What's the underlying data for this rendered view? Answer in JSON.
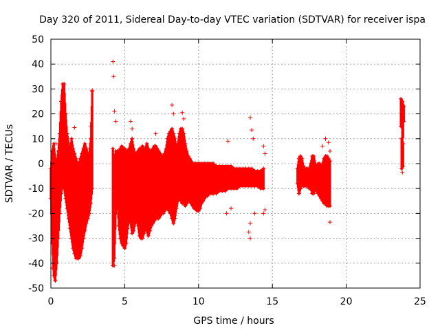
{
  "chart_data": {
    "type": "scatter",
    "title": "Day 320 of 2011, Sidereal Day-to-day VTEC variation (SDTVAR) for receiver ispa",
    "xlabel": "GPS time / hours",
    "ylabel": "SDTVAR / TECUs",
    "xlim": [
      0,
      25
    ],
    "ylim": [
      -50,
      50
    ],
    "x_ticks": [
      0,
      5,
      10,
      15,
      20,
      25
    ],
    "y_ticks": [
      -50,
      -40,
      -30,
      -20,
      -10,
      0,
      10,
      20,
      30,
      40,
      50
    ],
    "grid": true,
    "marker": "+",
    "color": "#ff0000",
    "series": [
      {
        "name": "SDTVAR",
        "bands": [
          {
            "x": 0.0,
            "lo": -14,
            "hi": -2
          },
          {
            "x": 0.1,
            "lo": -32,
            "hi": 5
          },
          {
            "x": 0.2,
            "lo": -45,
            "hi": 8
          },
          {
            "x": 0.3,
            "lo": -47,
            "hi": 2
          },
          {
            "x": 0.4,
            "lo": -40,
            "hi": 0
          },
          {
            "x": 0.5,
            "lo": -30,
            "hi": 5
          },
          {
            "x": 0.6,
            "lo": -20,
            "hi": 12
          },
          {
            "x": 0.7,
            "lo": -12,
            "hi": 25
          },
          {
            "x": 0.8,
            "lo": -8,
            "hi": 32
          },
          {
            "x": 0.9,
            "lo": -10,
            "hi": 32
          },
          {
            "x": 1.0,
            "lo": -14,
            "hi": 20
          },
          {
            "x": 1.1,
            "lo": -18,
            "hi": 12
          },
          {
            "x": 1.2,
            "lo": -22,
            "hi": 8
          },
          {
            "x": 1.3,
            "lo": -26,
            "hi": 5
          },
          {
            "x": 1.4,
            "lo": -30,
            "hi": 10
          },
          {
            "x": 1.5,
            "lo": -34,
            "hi": 6
          },
          {
            "x": 1.6,
            "lo": -36,
            "hi": 4
          },
          {
            "x": 1.7,
            "lo": -38,
            "hi": 2
          },
          {
            "x": 1.8,
            "lo": -38,
            "hi": 0
          },
          {
            "x": 1.9,
            "lo": -38,
            "hi": 0
          },
          {
            "x": 2.0,
            "lo": -37,
            "hi": 2
          },
          {
            "x": 2.1,
            "lo": -34,
            "hi": 4
          },
          {
            "x": 2.2,
            "lo": -30,
            "hi": 6
          },
          {
            "x": 2.3,
            "lo": -27,
            "hi": 8
          },
          {
            "x": 2.4,
            "lo": -24,
            "hi": 6
          },
          {
            "x": 2.5,
            "lo": -22,
            "hi": 4
          },
          {
            "x": 2.6,
            "lo": -20,
            "hi": 4
          },
          {
            "x": 2.7,
            "lo": -16,
            "hi": 10
          },
          {
            "x": 2.8,
            "lo": -10,
            "hi": 29
          },
          {
            "x": 4.2,
            "lo": -41,
            "hi": 6
          },
          {
            "x": 4.3,
            "lo": -38,
            "hi": 0
          },
          {
            "x": 4.4,
            "lo": -20,
            "hi": 5
          },
          {
            "x": 4.5,
            "lo": -15,
            "hi": 5
          },
          {
            "x": 4.6,
            "lo": -25,
            "hi": 5
          },
          {
            "x": 4.7,
            "lo": -30,
            "hi": 6
          },
          {
            "x": 4.8,
            "lo": -32,
            "hi": 7
          },
          {
            "x": 4.9,
            "lo": -33,
            "hi": 6
          },
          {
            "x": 5.0,
            "lo": -34,
            "hi": 6
          },
          {
            "x": 5.1,
            "lo": -32,
            "hi": 5
          },
          {
            "x": 5.2,
            "lo": -26,
            "hi": 5
          },
          {
            "x": 5.3,
            "lo": -22,
            "hi": 6
          },
          {
            "x": 5.4,
            "lo": -24,
            "hi": 8
          },
          {
            "x": 5.5,
            "lo": -28,
            "hi": 10
          },
          {
            "x": 5.6,
            "lo": -27,
            "hi": 6
          },
          {
            "x": 5.7,
            "lo": -24,
            "hi": 4
          },
          {
            "x": 5.8,
            "lo": -22,
            "hi": 4
          },
          {
            "x": 5.9,
            "lo": -25,
            "hi": 5
          },
          {
            "x": 6.0,
            "lo": -29,
            "hi": 6
          },
          {
            "x": 6.1,
            "lo": -30,
            "hi": 6
          },
          {
            "x": 6.2,
            "lo": -30,
            "hi": 7
          },
          {
            "x": 6.3,
            "lo": -28,
            "hi": 6
          },
          {
            "x": 6.4,
            "lo": -26,
            "hi": 6
          },
          {
            "x": 6.5,
            "lo": -27,
            "hi": 8
          },
          {
            "x": 6.6,
            "lo": -29,
            "hi": 6
          },
          {
            "x": 6.7,
            "lo": -27,
            "hi": 5
          },
          {
            "x": 6.8,
            "lo": -25,
            "hi": 5
          },
          {
            "x": 6.9,
            "lo": -24,
            "hi": 6
          },
          {
            "x": 7.0,
            "lo": -23,
            "hi": 7
          },
          {
            "x": 7.1,
            "lo": -22,
            "hi": 7
          },
          {
            "x": 7.2,
            "lo": -22,
            "hi": 6
          },
          {
            "x": 7.3,
            "lo": -22,
            "hi": 5
          },
          {
            "x": 7.4,
            "lo": -21,
            "hi": 4
          },
          {
            "x": 7.5,
            "lo": -20,
            "hi": 3
          },
          {
            "x": 7.6,
            "lo": -20,
            "hi": 3
          },
          {
            "x": 7.7,
            "lo": -19,
            "hi": 4
          },
          {
            "x": 7.8,
            "lo": -18,
            "hi": 6
          },
          {
            "x": 7.9,
            "lo": -18,
            "hi": 10
          },
          {
            "x": 8.0,
            "lo": -19,
            "hi": 12
          },
          {
            "x": 8.1,
            "lo": -20,
            "hi": 13
          },
          {
            "x": 8.2,
            "lo": -22,
            "hi": 14
          },
          {
            "x": 8.3,
            "lo": -24,
            "hi": 12
          },
          {
            "x": 8.4,
            "lo": -22,
            "hi": 10
          },
          {
            "x": 8.5,
            "lo": -18,
            "hi": 6
          },
          {
            "x": 8.6,
            "lo": -15,
            "hi": 8
          },
          {
            "x": 8.7,
            "lo": -14,
            "hi": 12
          },
          {
            "x": 8.8,
            "lo": -15,
            "hi": 14
          },
          {
            "x": 8.9,
            "lo": -16,
            "hi": 14
          },
          {
            "x": 9.0,
            "lo": -16,
            "hi": 12
          },
          {
            "x": 9.1,
            "lo": -17,
            "hi": 8
          },
          {
            "x": 9.2,
            "lo": -16,
            "hi": 5
          },
          {
            "x": 9.3,
            "lo": -15,
            "hi": 3
          },
          {
            "x": 9.4,
            "lo": -15,
            "hi": 2
          },
          {
            "x": 9.5,
            "lo": -16,
            "hi": 1
          },
          {
            "x": 9.6,
            "lo": -17,
            "hi": 0
          },
          {
            "x": 9.7,
            "lo": -18,
            "hi": 0
          },
          {
            "x": 9.8,
            "lo": -18,
            "hi": 0
          },
          {
            "x": 9.9,
            "lo": -19,
            "hi": 0
          },
          {
            "x": 10.0,
            "lo": -19,
            "hi": 0
          },
          {
            "x": 10.1,
            "lo": -18,
            "hi": 0
          },
          {
            "x": 10.2,
            "lo": -16,
            "hi": 0
          },
          {
            "x": 10.3,
            "lo": -15,
            "hi": 0
          },
          {
            "x": 10.4,
            "lo": -14,
            "hi": 0
          },
          {
            "x": 10.5,
            "lo": -13,
            "hi": 0
          },
          {
            "x": 10.6,
            "lo": -13,
            "hi": 0
          },
          {
            "x": 10.7,
            "lo": -12,
            "hi": 0
          },
          {
            "x": 10.8,
            "lo": -12,
            "hi": 0
          },
          {
            "x": 10.9,
            "lo": -12,
            "hi": 0
          },
          {
            "x": 11.0,
            "lo": -12,
            "hi": 0
          },
          {
            "x": 11.2,
            "lo": -12,
            "hi": -1
          },
          {
            "x": 11.4,
            "lo": -11,
            "hi": -1
          },
          {
            "x": 11.6,
            "lo": -11,
            "hi": -1
          },
          {
            "x": 11.8,
            "lo": -11,
            "hi": -1
          },
          {
            "x": 12.0,
            "lo": -10,
            "hi": -1
          },
          {
            "x": 12.2,
            "lo": -10,
            "hi": -1
          },
          {
            "x": 12.4,
            "lo": -10,
            "hi": -2
          },
          {
            "x": 12.6,
            "lo": -10,
            "hi": -2
          },
          {
            "x": 12.8,
            "lo": -9,
            "hi": -2
          },
          {
            "x": 13.0,
            "lo": -9,
            "hi": -2
          },
          {
            "x": 13.2,
            "lo": -9,
            "hi": -2
          },
          {
            "x": 13.4,
            "lo": -9,
            "hi": -2
          },
          {
            "x": 13.6,
            "lo": -9,
            "hi": -2
          },
          {
            "x": 13.8,
            "lo": -9,
            "hi": -3
          },
          {
            "x": 14.0,
            "lo": -9,
            "hi": -3
          },
          {
            "x": 14.2,
            "lo": -10,
            "hi": -3
          },
          {
            "x": 14.4,
            "lo": -10,
            "hi": -2
          },
          {
            "x": 16.7,
            "lo": -8,
            "hi": -2
          },
          {
            "x": 16.8,
            "lo": -12,
            "hi": 2
          },
          {
            "x": 16.9,
            "lo": -10,
            "hi": 3
          },
          {
            "x": 17.0,
            "lo": -8,
            "hi": 2
          },
          {
            "x": 17.1,
            "lo": -9,
            "hi": -1
          },
          {
            "x": 17.2,
            "lo": -9,
            "hi": -2
          },
          {
            "x": 17.3,
            "lo": -9,
            "hi": -2
          },
          {
            "x": 17.4,
            "lo": -9,
            "hi": -2
          },
          {
            "x": 17.5,
            "lo": -10,
            "hi": -2
          },
          {
            "x": 17.6,
            "lo": -10,
            "hi": 0
          },
          {
            "x": 17.7,
            "lo": -12,
            "hi": 3
          },
          {
            "x": 17.8,
            "lo": -12,
            "hi": 3
          },
          {
            "x": 17.9,
            "lo": -10,
            "hi": 0
          },
          {
            "x": 18.0,
            "lo": -11,
            "hi": -1
          },
          {
            "x": 18.1,
            "lo": -12,
            "hi": 0
          },
          {
            "x": 18.2,
            "lo": -13,
            "hi": 0
          },
          {
            "x": 18.3,
            "lo": -14,
            "hi": -1
          },
          {
            "x": 18.4,
            "lo": -15,
            "hi": 0
          },
          {
            "x": 18.5,
            "lo": -16,
            "hi": 2
          },
          {
            "x": 18.6,
            "lo": -16,
            "hi": 3
          },
          {
            "x": 18.7,
            "lo": -17,
            "hi": 3
          },
          {
            "x": 18.8,
            "lo": -17,
            "hi": 2
          },
          {
            "x": 18.9,
            "lo": -17,
            "hi": 1
          },
          {
            "x": 23.7,
            "lo": 15,
            "hi": 26
          },
          {
            "x": 23.8,
            "lo": 18,
            "hi": 25
          },
          {
            "x": 23.9,
            "lo": 17,
            "hi": 23
          },
          {
            "x": 23.75,
            "lo": -2,
            "hi": 10
          },
          {
            "x": 23.85,
            "lo": -1,
            "hi": 8
          }
        ],
        "outliers": [
          {
            "x": 4.2,
            "y": 41
          },
          {
            "x": 4.25,
            "y": 35
          },
          {
            "x": 4.3,
            "y": 21
          },
          {
            "x": 4.4,
            "y": 17
          },
          {
            "x": 5.4,
            "y": 17
          },
          {
            "x": 5.5,
            "y": 14
          },
          {
            "x": 7.1,
            "y": 12
          },
          {
            "x": 8.2,
            "y": 23.5
          },
          {
            "x": 8.3,
            "y": 20
          },
          {
            "x": 8.9,
            "y": 20.5
          },
          {
            "x": 9.0,
            "y": 18
          },
          {
            "x": 0.35,
            "y": 8
          },
          {
            "x": 1.6,
            "y": 14.5
          },
          {
            "x": 2.8,
            "y": 29.5
          },
          {
            "x": 2.7,
            "y": 15
          },
          {
            "x": 12.0,
            "y": 9
          },
          {
            "x": 11.9,
            "y": -20
          },
          {
            "x": 12.2,
            "y": -18
          },
          {
            "x": 12.4,
            "y": -9
          },
          {
            "x": 13.5,
            "y": 18.5
          },
          {
            "x": 13.6,
            "y": 13.5
          },
          {
            "x": 13.7,
            "y": 10
          },
          {
            "x": 13.5,
            "y": -24
          },
          {
            "x": 13.4,
            "y": -27.5
          },
          {
            "x": 13.5,
            "y": -30
          },
          {
            "x": 13.8,
            "y": -20
          },
          {
            "x": 14.4,
            "y": 7
          },
          {
            "x": 14.5,
            "y": 4
          },
          {
            "x": 14.4,
            "y": -20
          },
          {
            "x": 14.5,
            "y": -18.5
          },
          {
            "x": 18.4,
            "y": 7
          },
          {
            "x": 18.6,
            "y": 10
          },
          {
            "x": 18.8,
            "y": 8.5
          },
          {
            "x": 18.9,
            "y": 5
          },
          {
            "x": 18.9,
            "y": -23.5
          },
          {
            "x": 4.3,
            "y": -41
          },
          {
            "x": 0.3,
            "y": -47
          },
          {
            "x": 0.1,
            "y": -42
          },
          {
            "x": 23.8,
            "y": -3.5
          }
        ]
      }
    ]
  }
}
